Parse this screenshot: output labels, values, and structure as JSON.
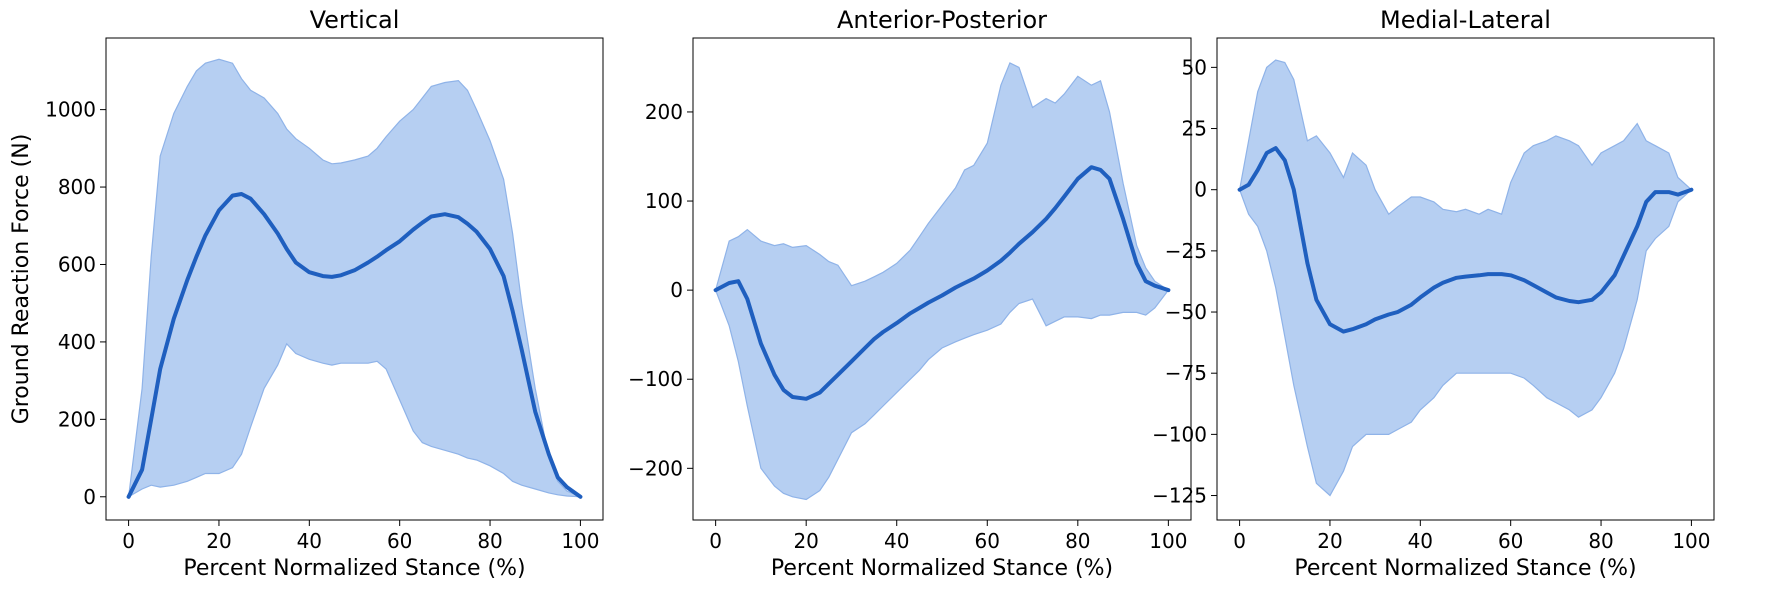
{
  "colors": {
    "mean_line": "#1f5fbf",
    "band_fill": "#a9c7f0",
    "band_edge": "#8fb3e8"
  },
  "chart_data": [
    {
      "type": "line",
      "title": "Vertical",
      "xlabel": "Percent Normalized Stance (%)",
      "ylabel": "Ground Reaction Force (N)",
      "xlim": [
        -5,
        105
      ],
      "ylim": [
        -60,
        1185
      ],
      "xticks": [
        0,
        20,
        40,
        60,
        80,
        100
      ],
      "yticks": [
        0,
        200,
        400,
        600,
        800,
        1000
      ],
      "tick_labels_x": [
        "0",
        "20",
        "40",
        "60",
        "80",
        "100"
      ],
      "tick_labels_y": [
        "0",
        "200",
        "400",
        "600",
        "800",
        "1000"
      ],
      "x": [
        0,
        3,
        5,
        7,
        10,
        13,
        15,
        17,
        20,
        23,
        25,
        27,
        30,
        33,
        35,
        37,
        40,
        43,
        45,
        47,
        50,
        53,
        55,
        57,
        60,
        63,
        65,
        67,
        70,
        73,
        75,
        77,
        80,
        83,
        85,
        87,
        90,
        93,
        95,
        97,
        100
      ],
      "mean": [
        0,
        70,
        200,
        330,
        460,
        560,
        620,
        675,
        740,
        778,
        782,
        770,
        730,
        680,
        640,
        605,
        580,
        570,
        568,
        572,
        585,
        605,
        620,
        637,
        660,
        690,
        708,
        724,
        730,
        722,
        705,
        685,
        640,
        570,
        480,
        380,
        220,
        110,
        50,
        25,
        0
      ],
      "upper": [
        0,
        280,
        620,
        880,
        990,
        1060,
        1100,
        1120,
        1130,
        1120,
        1080,
        1050,
        1030,
        990,
        950,
        925,
        900,
        870,
        860,
        862,
        870,
        880,
        900,
        930,
        970,
        1000,
        1030,
        1060,
        1070,
        1075,
        1050,
        1000,
        920,
        820,
        680,
        500,
        280,
        100,
        40,
        15,
        0
      ],
      "lower": [
        0,
        20,
        30,
        25,
        30,
        40,
        50,
        60,
        60,
        75,
        110,
        180,
        280,
        340,
        395,
        370,
        355,
        345,
        340,
        345,
        345,
        345,
        350,
        330,
        250,
        170,
        140,
        130,
        120,
        110,
        100,
        95,
        80,
        60,
        40,
        30,
        20,
        10,
        5,
        2,
        0
      ],
      "series": [
        {
          "values": "mean"
        }
      ]
    },
    {
      "type": "line",
      "title": "Anterior-Posterior",
      "xlabel": "Percent Normalized Stance (%)",
      "ylabel": "",
      "xlim": [
        -5,
        105
      ],
      "ylim": [
        -258,
        283
      ],
      "xticks": [
        0,
        20,
        40,
        60,
        80,
        100
      ],
      "yticks": [
        -200,
        -100,
        0,
        100,
        200
      ],
      "tick_labels_x": [
        "0",
        "20",
        "40",
        "60",
        "80",
        "100"
      ],
      "tick_labels_y": [
        "−200",
        "−100",
        "0",
        "100",
        "200"
      ],
      "x": [
        0,
        3,
        5,
        7,
        10,
        13,
        15,
        17,
        20,
        23,
        25,
        27,
        30,
        33,
        35,
        37,
        40,
        43,
        45,
        47,
        50,
        53,
        55,
        57,
        60,
        63,
        65,
        67,
        70,
        73,
        75,
        77,
        80,
        83,
        85,
        87,
        90,
        93,
        95,
        97,
        100
      ],
      "mean": [
        0,
        8,
        10,
        -10,
        -60,
        -95,
        -112,
        -120,
        -122,
        -115,
        -105,
        -95,
        -80,
        -65,
        -55,
        -47,
        -37,
        -26,
        -20,
        -14,
        -6,
        3,
        8,
        13,
        22,
        33,
        42,
        52,
        65,
        80,
        92,
        105,
        125,
        138,
        135,
        125,
        80,
        30,
        10,
        5,
        0
      ],
      "upper": [
        0,
        55,
        60,
        68,
        55,
        50,
        52,
        48,
        50,
        40,
        32,
        28,
        5,
        10,
        15,
        20,
        30,
        45,
        60,
        75,
        95,
        115,
        135,
        140,
        165,
        230,
        255,
        250,
        205,
        215,
        210,
        220,
        240,
        230,
        235,
        200,
        120,
        50,
        25,
        10,
        0
      ],
      "lower": [
        0,
        -40,
        -80,
        -130,
        -200,
        -220,
        -228,
        -232,
        -235,
        -225,
        -210,
        -190,
        -160,
        -150,
        -140,
        -130,
        -115,
        -100,
        -90,
        -78,
        -65,
        -58,
        -54,
        -50,
        -45,
        -38,
        -25,
        -15,
        -10,
        -40,
        -35,
        -30,
        -30,
        -32,
        -28,
        -28,
        -25,
        -25,
        -28,
        -20,
        0
      ],
      "series": [
        {
          "values": "mean"
        }
      ]
    },
    {
      "type": "line",
      "title": "Medial-Lateral",
      "xlabel": "Percent Normalized Stance (%)",
      "ylabel": "",
      "xlim": [
        -5,
        105
      ],
      "ylim": [
        -135,
        62
      ],
      "xticks": [
        0,
        20,
        40,
        60,
        80,
        100
      ],
      "yticks": [
        -125,
        -100,
        -75,
        -50,
        -25,
        0,
        25,
        50
      ],
      "tick_labels_x": [
        "0",
        "20",
        "40",
        "60",
        "80",
        "100"
      ],
      "tick_labels_y": [
        "−125",
        "−100",
        "−75",
        "−50",
        "−25",
        "0",
        "25",
        "50"
      ],
      "x": [
        0,
        2,
        4,
        6,
        8,
        10,
        12,
        15,
        17,
        20,
        23,
        25,
        28,
        30,
        33,
        35,
        38,
        40,
        43,
        45,
        48,
        50,
        53,
        55,
        58,
        60,
        63,
        65,
        68,
        70,
        73,
        75,
        78,
        80,
        83,
        85,
        88,
        90,
        92,
        95,
        97,
        100
      ],
      "mean": [
        0,
        2,
        8,
        15,
        17,
        12,
        0,
        -30,
        -45,
        -55,
        -58,
        -57,
        -55,
        -53,
        -51,
        -50,
        -47,
        -44,
        -40,
        -38,
        -36,
        -35.5,
        -35,
        -34.5,
        -34.5,
        -35,
        -37,
        -39,
        -42,
        -44,
        -45.5,
        -46,
        -45,
        -42,
        -35,
        -27,
        -15,
        -5,
        -1,
        -1,
        -2,
        0
      ],
      "upper": [
        0,
        20,
        40,
        50,
        53,
        52,
        45,
        20,
        22,
        15,
        5,
        15,
        10,
        0,
        -10,
        -7,
        -3,
        -3,
        -5,
        -8,
        -9,
        -8,
        -10,
        -8,
        -10,
        3,
        15,
        18,
        20,
        22,
        20,
        18,
        10,
        15,
        18,
        20,
        27,
        20,
        18,
        15,
        5,
        0
      ],
      "lower": [
        0,
        -10,
        -15,
        -25,
        -40,
        -60,
        -80,
        -105,
        -120,
        -125,
        -115,
        -105,
        -100,
        -100,
        -100,
        -98,
        -95,
        -90,
        -85,
        -80,
        -75,
        -75,
        -75,
        -75,
        -75,
        -75,
        -77,
        -80,
        -85,
        -87,
        -90,
        -93,
        -90,
        -85,
        -75,
        -65,
        -45,
        -25,
        -20,
        -15,
        -5,
        0
      ],
      "series": [
        {
          "values": "mean"
        }
      ]
    }
  ]
}
